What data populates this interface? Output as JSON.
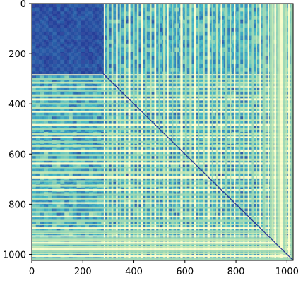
{
  "chart_data": {
    "type": "heatmap",
    "title": "",
    "xlabel": "",
    "ylabel": "",
    "xlim": [
      0,
      1024
    ],
    "ylim": [
      1024,
      0
    ],
    "x_ticks": [
      0,
      200,
      400,
      600,
      800,
      1000
    ],
    "y_ticks": [
      0,
      200,
      400,
      600,
      800,
      1000
    ],
    "x_tick_labels": [
      "0",
      "200",
      "400",
      "600",
      "800",
      "1000"
    ],
    "y_tick_labels": [
      "0",
      "200",
      "400",
      "600",
      "800",
      "1000"
    ],
    "colormap": "YlGnBu_r",
    "colormap_stops": [
      "#253494",
      "#2c7fb8",
      "#41b6c4",
      "#a1dab4",
      "#ffffcc"
    ],
    "diagonal_color": "#253494",
    "dense_block": [
      0,
      280
    ],
    "bright_line_positions": [
      282,
      296,
      312,
      330,
      345,
      362,
      378,
      396,
      412,
      428,
      446,
      462,
      480,
      497,
      515,
      530,
      548,
      565,
      582,
      600,
      618,
      634,
      652,
      670,
      688,
      705,
      722,
      740,
      758,
      776,
      792,
      810,
      828,
      846,
      862,
      878,
      892,
      904,
      914,
      924,
      932,
      940,
      950,
      958,
      966,
      974,
      984,
      994,
      1004,
      1014
    ]
  }
}
